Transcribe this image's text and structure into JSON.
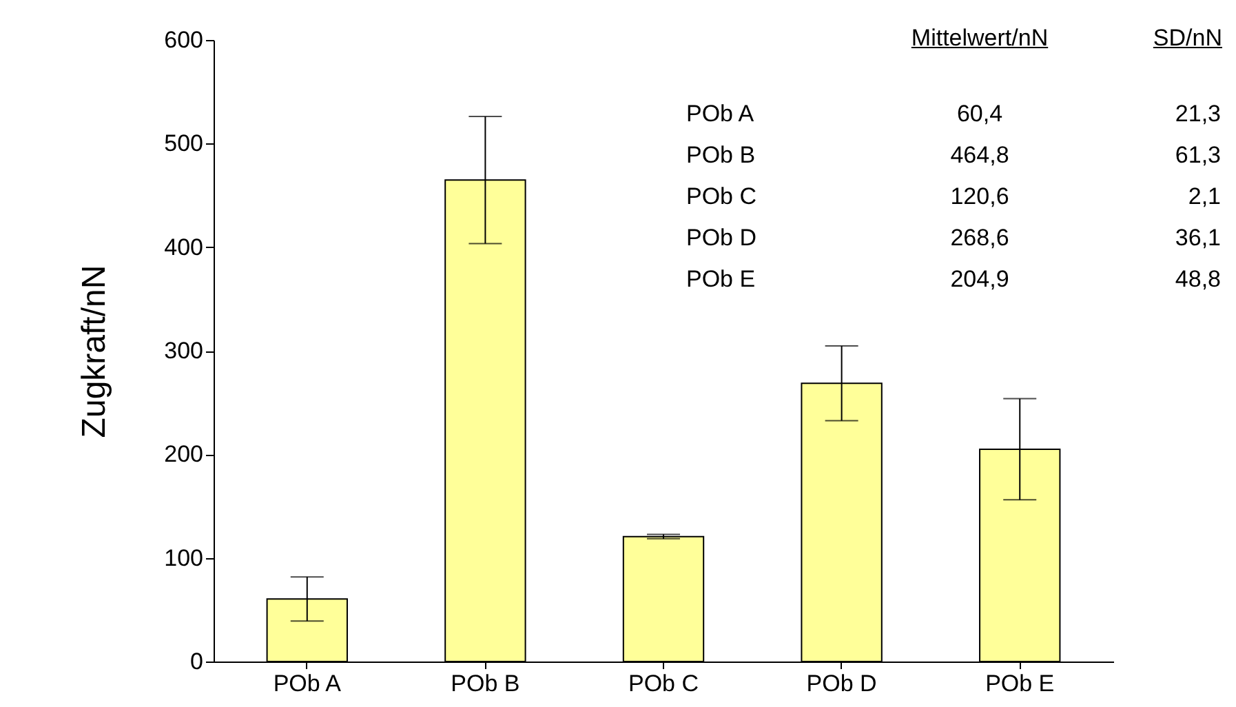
{
  "chart_data": {
    "type": "bar",
    "ylabel": "Zugkraft/nN",
    "categories": [
      "POb A",
      "POb B",
      "POb C",
      "POb D",
      "POb E"
    ],
    "values": [
      60.4,
      464.8,
      120.6,
      268.6,
      204.9
    ],
    "errors": [
      21.3,
      61.3,
      2.1,
      36.1,
      48.8
    ],
    "color": "#ffff99",
    "ylim": [
      0,
      600
    ],
    "yticks": [
      0,
      100,
      200,
      300,
      400,
      500,
      600
    ],
    "annotations": [
      "Mittelwert/nN",
      "SD/nN",
      "POb A",
      "60,4",
      "21,3",
      "POb B",
      "464,8",
      "61,3",
      "POb C",
      "120,6",
      "2,1",
      "POb D",
      "268,6",
      "36,1",
      "POb E",
      "204,9",
      "48,8"
    ],
    "grid": false
  }
}
